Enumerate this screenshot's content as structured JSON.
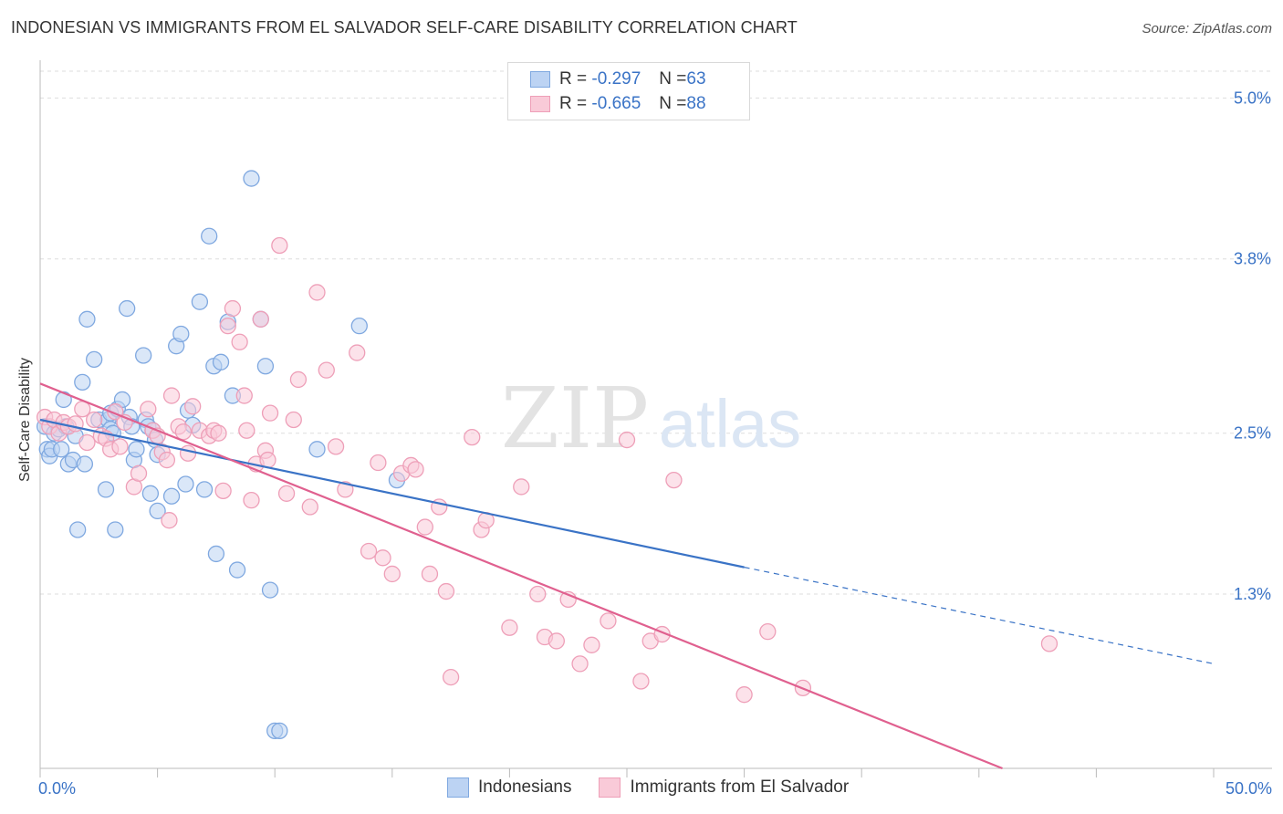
{
  "title": "INDONESIAN VS IMMIGRANTS FROM EL SALVADOR SELF-CARE DISABILITY CORRELATION CHART",
  "source": "Source: ZipAtlas.com",
  "watermark": {
    "zip": "ZIP",
    "atlas": "atlas"
  },
  "stats": [
    {
      "r_label": "R = ",
      "r_value": "-0.297",
      "n_label": "N = ",
      "n_value": "63",
      "color": "#7fa8e0",
      "fill": "#bcd3f3"
    },
    {
      "r_label": "R = ",
      "r_value": "-0.665",
      "n_label": "N = ",
      "n_value": "88",
      "color": "#ee9fb8",
      "fill": "#f9cad8"
    }
  ],
  "legend": [
    {
      "label": "Indonesians",
      "color": "#7fa8e0",
      "fill": "#bcd3f3"
    },
    {
      "label": "Immigrants from El Salvador",
      "color": "#ee9fb8",
      "fill": "#f9cad8"
    }
  ],
  "chart_data": {
    "type": "scatter",
    "title": "INDONESIAN VS IMMIGRANTS FROM EL SALVADOR SELF-CARE DISABILITY CORRELATION CHART",
    "xlabel": "",
    "ylabel": "Self-Care Disability",
    "xlim": [
      0,
      50
    ],
    "ylim": [
      0,
      5.2
    ],
    "x_tick_labels": [
      "0.0%",
      "50.0%"
    ],
    "y_ticks": [
      1.3,
      2.5,
      3.8,
      5.0
    ],
    "y_tick_labels": [
      "1.3%",
      "2.5%",
      "3.8%",
      "5.0%"
    ],
    "grid": true,
    "colors": {
      "blue": "#3a73c6",
      "pink": "#e0608f",
      "tick_text": "#3a73c6"
    },
    "series": [
      {
        "name": "Indonesians",
        "stroke": "#7fa8e0",
        "fill": "#bcd3f3",
        "trend": {
          "x0": 0,
          "y0": 2.6,
          "x1": 30,
          "y1": 1.5,
          "dash_to_x": 50,
          "dash_to_y": 0.78,
          "color": "#3a73c6"
        },
        "points": [
          [
            0.2,
            2.55
          ],
          [
            0.3,
            2.38
          ],
          [
            0.4,
            2.33
          ],
          [
            0.5,
            2.38
          ],
          [
            0.6,
            2.5
          ],
          [
            0.8,
            2.53
          ],
          [
            0.9,
            2.38
          ],
          [
            1.0,
            2.75
          ],
          [
            1.1,
            2.55
          ],
          [
            1.2,
            2.27
          ],
          [
            1.4,
            2.3
          ],
          [
            1.5,
            2.48
          ],
          [
            1.6,
            1.78
          ],
          [
            1.8,
            2.88
          ],
          [
            1.9,
            2.27
          ],
          [
            2.0,
            3.35
          ],
          [
            2.3,
            3.05
          ],
          [
            2.5,
            2.6
          ],
          [
            2.8,
            2.08
          ],
          [
            2.9,
            2.6
          ],
          [
            3.0,
            2.65
          ],
          [
            3.0,
            2.53
          ],
          [
            3.1,
            2.5
          ],
          [
            3.2,
            1.78
          ],
          [
            3.3,
            2.68
          ],
          [
            3.5,
            2.75
          ],
          [
            3.7,
            3.43
          ],
          [
            3.8,
            2.62
          ],
          [
            3.9,
            2.55
          ],
          [
            4.0,
            2.3
          ],
          [
            4.1,
            2.38
          ],
          [
            4.4,
            3.08
          ],
          [
            4.5,
            2.6
          ],
          [
            4.6,
            2.55
          ],
          [
            4.7,
            2.05
          ],
          [
            4.8,
            2.52
          ],
          [
            4.9,
            2.45
          ],
          [
            5.0,
            1.92
          ],
          [
            5.0,
            2.34
          ],
          [
            5.6,
            2.03
          ],
          [
            5.8,
            3.15
          ],
          [
            6.0,
            3.24
          ],
          [
            6.2,
            2.12
          ],
          [
            6.3,
            2.67
          ],
          [
            6.5,
            2.56
          ],
          [
            6.8,
            3.48
          ],
          [
            7.0,
            2.08
          ],
          [
            7.2,
            3.97
          ],
          [
            7.4,
            3.0
          ],
          [
            7.5,
            1.6
          ],
          [
            7.7,
            3.03
          ],
          [
            8.0,
            3.33
          ],
          [
            8.2,
            2.78
          ],
          [
            8.4,
            1.48
          ],
          [
            9.0,
            4.4
          ],
          [
            9.4,
            3.35
          ],
          [
            9.6,
            3.0
          ],
          [
            9.8,
            1.33
          ],
          [
            10.0,
            0.28
          ],
          [
            10.2,
            0.28
          ],
          [
            11.8,
            2.38
          ],
          [
            13.6,
            3.3
          ],
          [
            15.2,
            2.15
          ]
        ]
      },
      {
        "name": "Immigrants from El Salvador",
        "stroke": "#ee9fb8",
        "fill": "#f9cad8",
        "trend": {
          "x0": 0,
          "y0": 2.87,
          "x1": 41,
          "y1": 0.0,
          "color": "#e0608f"
        },
        "points": [
          [
            0.2,
            2.62
          ],
          [
            0.4,
            2.55
          ],
          [
            0.6,
            2.6
          ],
          [
            0.8,
            2.5
          ],
          [
            1.0,
            2.58
          ],
          [
            1.2,
            2.55
          ],
          [
            1.5,
            2.57
          ],
          [
            1.8,
            2.68
          ],
          [
            2.0,
            2.43
          ],
          [
            2.3,
            2.6
          ],
          [
            2.6,
            2.48
          ],
          [
            2.8,
            2.46
          ],
          [
            3.0,
            2.38
          ],
          [
            3.2,
            2.66
          ],
          [
            3.4,
            2.4
          ],
          [
            3.6,
            2.58
          ],
          [
            4.0,
            2.1
          ],
          [
            4.2,
            2.2
          ],
          [
            4.6,
            2.68
          ],
          [
            4.8,
            2.52
          ],
          [
            5.0,
            2.48
          ],
          [
            5.2,
            2.36
          ],
          [
            5.4,
            2.3
          ],
          [
            5.5,
            1.85
          ],
          [
            5.6,
            2.78
          ],
          [
            5.9,
            2.55
          ],
          [
            6.1,
            2.51
          ],
          [
            6.3,
            2.35
          ],
          [
            6.5,
            2.7
          ],
          [
            6.8,
            2.52
          ],
          [
            7.2,
            2.48
          ],
          [
            7.4,
            2.52
          ],
          [
            7.6,
            2.5
          ],
          [
            7.8,
            2.07
          ],
          [
            8.0,
            3.3
          ],
          [
            8.2,
            3.43
          ],
          [
            8.5,
            3.18
          ],
          [
            8.7,
            2.78
          ],
          [
            8.8,
            2.52
          ],
          [
            9.0,
            2.0
          ],
          [
            9.2,
            2.27
          ],
          [
            9.4,
            3.35
          ],
          [
            9.6,
            2.37
          ],
          [
            9.7,
            2.3
          ],
          [
            9.8,
            2.65
          ],
          [
            10.2,
            3.9
          ],
          [
            10.5,
            2.05
          ],
          [
            10.8,
            2.6
          ],
          [
            11.0,
            2.9
          ],
          [
            11.5,
            1.95
          ],
          [
            11.8,
            3.55
          ],
          [
            12.2,
            2.97
          ],
          [
            12.6,
            2.4
          ],
          [
            13.0,
            2.08
          ],
          [
            13.5,
            3.1
          ],
          [
            14.0,
            1.62
          ],
          [
            14.4,
            2.28
          ],
          [
            14.6,
            1.57
          ],
          [
            15.0,
            1.45
          ],
          [
            15.4,
            2.2
          ],
          [
            15.8,
            2.26
          ],
          [
            16.0,
            2.23
          ],
          [
            16.4,
            1.8
          ],
          [
            16.6,
            1.45
          ],
          [
            17.0,
            1.95
          ],
          [
            17.3,
            1.32
          ],
          [
            17.5,
            0.68
          ],
          [
            18.4,
            2.47
          ],
          [
            18.8,
            1.78
          ],
          [
            19.0,
            1.85
          ],
          [
            20.0,
            1.05
          ],
          [
            20.5,
            2.1
          ],
          [
            21.2,
            1.3
          ],
          [
            21.5,
            0.98
          ],
          [
            22.0,
            0.95
          ],
          [
            22.5,
            1.26
          ],
          [
            23.0,
            0.78
          ],
          [
            23.5,
            0.92
          ],
          [
            24.2,
            1.1
          ],
          [
            25.0,
            2.45
          ],
          [
            25.6,
            0.65
          ],
          [
            26.0,
            0.95
          ],
          [
            26.5,
            1.0
          ],
          [
            27.0,
            2.15
          ],
          [
            30.0,
            0.55
          ],
          [
            31.0,
            1.02
          ],
          [
            32.5,
            0.6
          ],
          [
            43.0,
            0.93
          ]
        ]
      }
    ]
  }
}
